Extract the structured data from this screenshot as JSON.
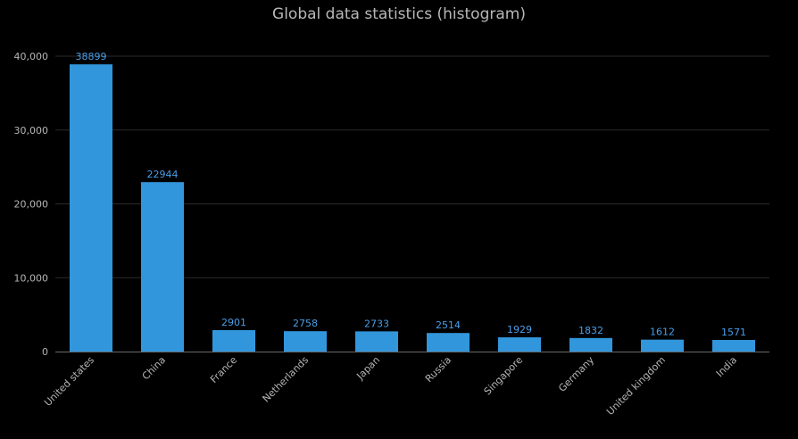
{
  "chart_data": {
    "type": "bar",
    "title": "Global data statistics (histogram)",
    "categories": [
      "United states",
      "China",
      "France",
      "Netherlands",
      "Japan",
      "Russia",
      "Singapore",
      "Germany",
      "United kingdom",
      "India"
    ],
    "values": [
      38899,
      22944,
      2901,
      2758,
      2733,
      2514,
      1929,
      1832,
      1612,
      1571
    ],
    "y_ticks": [
      "0",
      "10,000",
      "20,000",
      "30,000",
      "40,000"
    ],
    "ylim": [
      0,
      40000
    ],
    "xlabel": "",
    "ylabel": "",
    "grid": true,
    "bar_color": "#3296dc",
    "label_color": "#4a9ee8",
    "background": "#000000"
  }
}
